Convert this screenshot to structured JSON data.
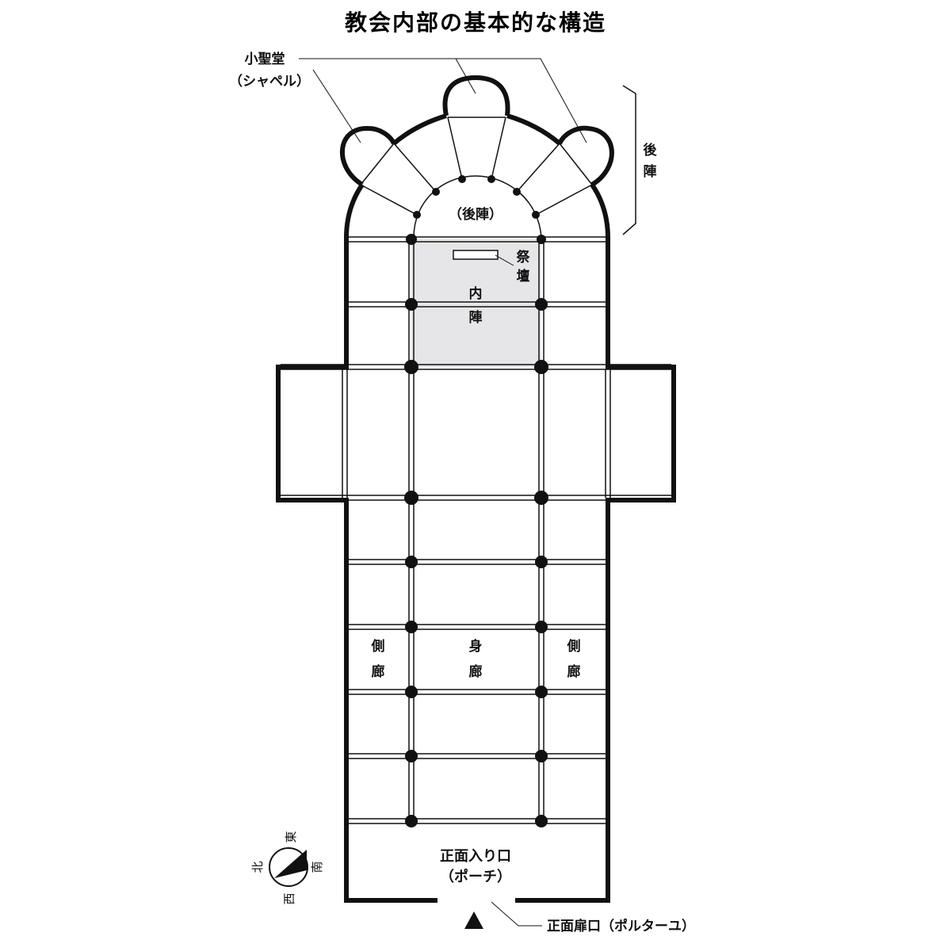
{
  "title": "教会内部の基本的な構造",
  "labels": {
    "chapel_1": "小聖堂",
    "chapel_2": "（シャペル）",
    "apse_side_1": "後",
    "apse_side_2": "陣",
    "apse_inner": "（後陣）",
    "altar_1": "祭",
    "altar_2": "壇",
    "choir_1": "内",
    "choir_2": "陣",
    "aisle_left_1": "側",
    "aisle_left_2": "廊",
    "nave_1": "身",
    "nave_2": "廊",
    "aisle_right_1": "側",
    "aisle_right_2": "廊",
    "entrance_1": "正面入り口",
    "entrance_2": "（ポーチ）",
    "portal": "正面扉口（ポルターユ）"
  },
  "compass": {
    "east": "東",
    "south": "南",
    "north": "北",
    "west": "西"
  },
  "colors": {
    "ink": "#111111",
    "choir_fill": "#e6e6e8",
    "background": "#ffffff"
  }
}
